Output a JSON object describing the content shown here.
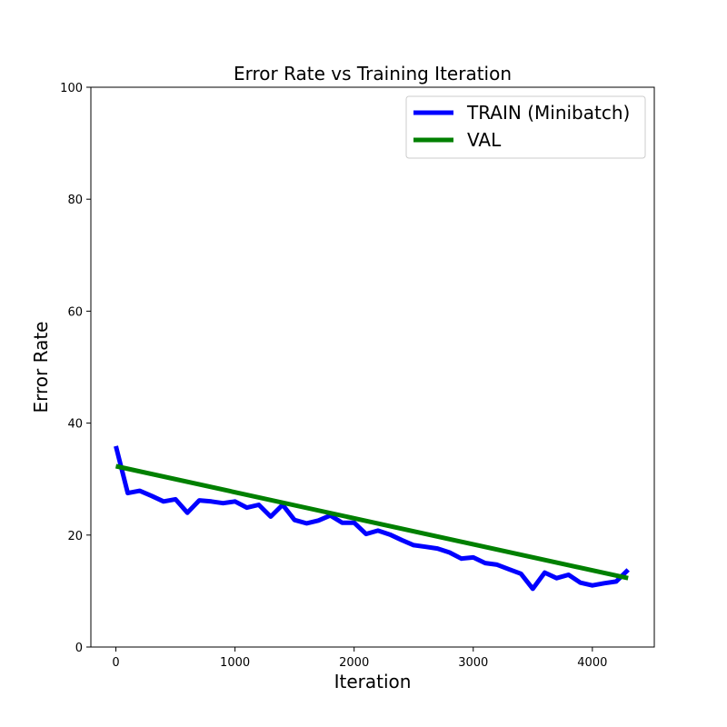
{
  "chart_data": {
    "type": "line",
    "title": "Error Rate vs Training Iteration",
    "xlabel": "Iteration",
    "ylabel": "Error Rate",
    "xlim": [
      -210,
      4520
    ],
    "ylim": [
      0,
      100
    ],
    "xticks": [
      0,
      1000,
      2000,
      3000,
      4000
    ],
    "yticks": [
      0,
      20,
      40,
      60,
      80,
      100
    ],
    "grid": false,
    "legend_position": "top-right",
    "series": [
      {
        "name": "TRAIN (Minibatch)",
        "color": "#0000ff",
        "x": [
          0,
          100,
          200,
          300,
          400,
          500,
          600,
          700,
          800,
          900,
          1000,
          1100,
          1200,
          1300,
          1400,
          1500,
          1600,
          1700,
          1800,
          1900,
          2000,
          2100,
          2200,
          2300,
          2400,
          2500,
          2600,
          2700,
          2800,
          2900,
          3000,
          3100,
          3200,
          3300,
          3400,
          3500,
          3600,
          3700,
          3800,
          3900,
          4000,
          4100,
          4200,
          4300
        ],
        "y": [
          35.9,
          27.5,
          27.9,
          27.0,
          26.0,
          26.4,
          24.0,
          26.2,
          26.0,
          25.7,
          26.0,
          24.9,
          25.4,
          23.3,
          25.4,
          22.7,
          22.1,
          22.6,
          23.5,
          22.2,
          22.2,
          20.2,
          20.8,
          20.1,
          19.1,
          18.2,
          17.9,
          17.6,
          16.9,
          15.8,
          16.0,
          15.0,
          14.7,
          13.9,
          13.1,
          10.4,
          13.3,
          12.3,
          12.9,
          11.5,
          11.0,
          11.4,
          11.7,
          13.8
        ]
      },
      {
        "name": "VAL",
        "color": "#008000",
        "x": [
          0,
          4300
        ],
        "y": [
          32.3,
          12.3
        ]
      }
    ]
  }
}
